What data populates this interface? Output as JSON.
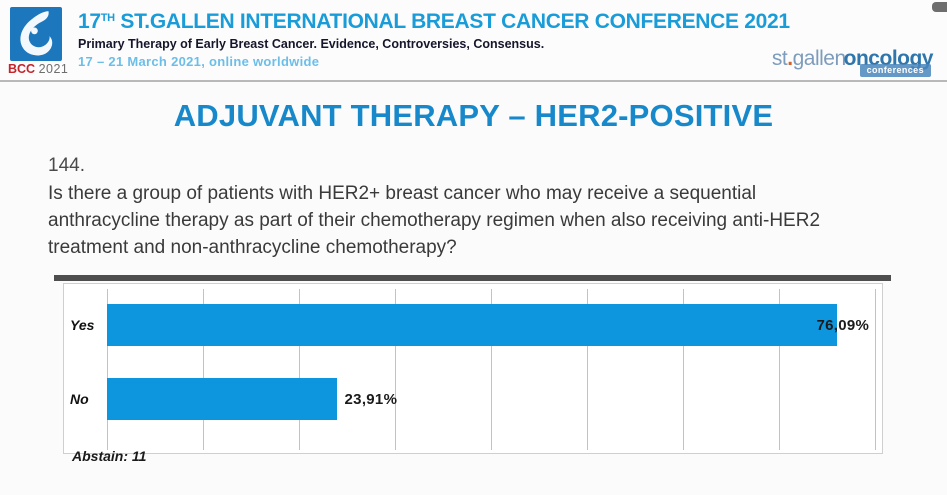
{
  "header": {
    "logo": {
      "acronym": "BCC",
      "year": "2021"
    },
    "title_prefix": "17",
    "title_sup": "TH",
    "title_rest": " ST.GALLEN INTERNATIONAL BREAST CANCER CONFERENCE 2021",
    "subtitle": "Primary Therapy of Early Breast Cancer. Evidence, Controversies, Consensus.",
    "date_line": "17 – 21 March 2021, online worldwide",
    "partner_logo": {
      "part1": "st",
      "dot": ".",
      "part2": "gallen",
      "part3": "oncology",
      "badge": "conferences"
    }
  },
  "slide": {
    "title": "ADJUVANT THERAPY – HER2-POSITIVE",
    "question_number": "144.",
    "question_text": "Is there a group of patients with HER2+ breast cancer who may receive a sequential anthracycline therapy as part of their chemotherapy regimen when also receiving anti-HER2 treatment and non-anthracycline chemotherapy?",
    "abstain_note": "Abstain: 11"
  },
  "chart_data": {
    "type": "bar",
    "orientation": "horizontal",
    "title": "",
    "categories": [
      "Yes",
      "No"
    ],
    "values": [
      76.09,
      23.91
    ],
    "value_labels": [
      "76,09%",
      "23,91%"
    ],
    "xlim": [
      0,
      80
    ],
    "gridline_step": 10,
    "grid": true,
    "legend": false,
    "abstain_count": 11,
    "bar_color": "#0D96DE"
  },
  "colors": {
    "accent_blue": "#1789CB",
    "header_blue": "#1A9CD8",
    "bar_blue": "#0D96DE",
    "logo_blue": "#1C77BD",
    "bcc_red": "#C4242B",
    "date_blue": "#6CBEE9"
  }
}
